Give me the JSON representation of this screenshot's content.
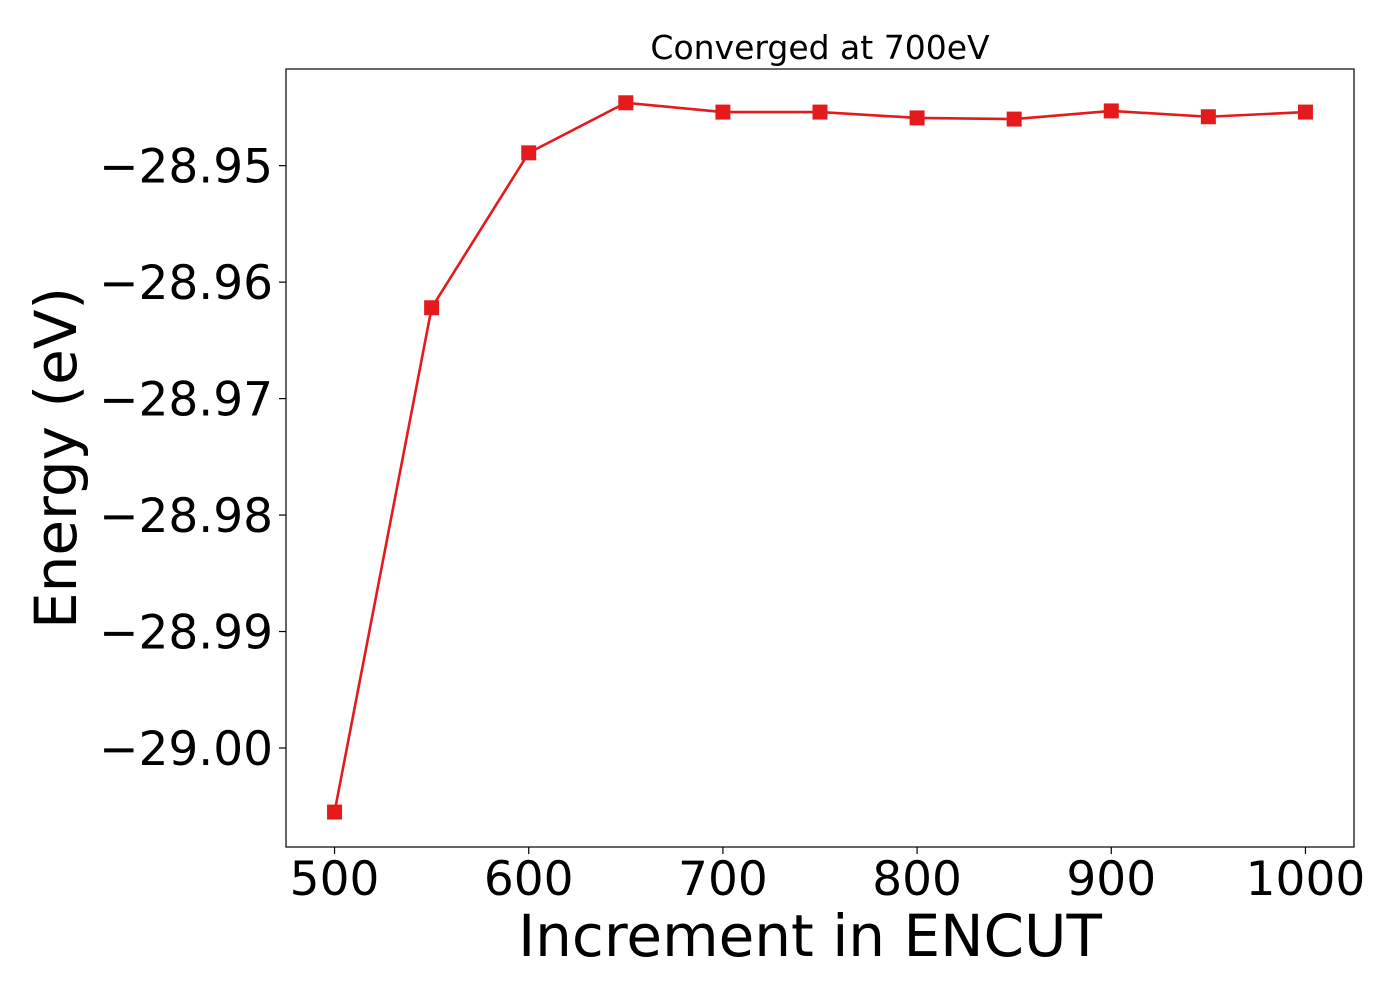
{
  "chart_data": {
    "type": "line",
    "title": "Converged at 700eV",
    "xlabel": "Increment in ENCUT",
    "ylabel": "Energy (eV)",
    "x_ticks": [
      500,
      600,
      700,
      800,
      900,
      1000
    ],
    "x_tick_labels": [
      "500",
      "600",
      "700",
      "800",
      "900",
      "1000"
    ],
    "y_ticks": [
      -28.95,
      -28.96,
      -28.97,
      -28.98,
      -28.99,
      -29.0
    ],
    "y_tick_labels": [
      "−28.95",
      "−28.96",
      "−28.97",
      "−28.98",
      "−28.99",
      "−29.00"
    ],
    "xlim": [
      475,
      1025
    ],
    "ylim": [
      -29.0085,
      -28.9417
    ],
    "grid": false,
    "legend": "none",
    "series": [
      {
        "color": "#e41a1c",
        "marker": "square",
        "x": [
          500,
          550,
          600,
          650,
          700,
          750,
          800,
          850,
          900,
          950,
          1000
        ],
        "y": [
          -29.0055,
          -28.9622,
          -28.9489,
          -28.9446,
          -28.9454,
          -28.9454,
          -28.9459,
          -28.946,
          -28.9453,
          -28.9458,
          -28.9454
        ]
      }
    ]
  }
}
